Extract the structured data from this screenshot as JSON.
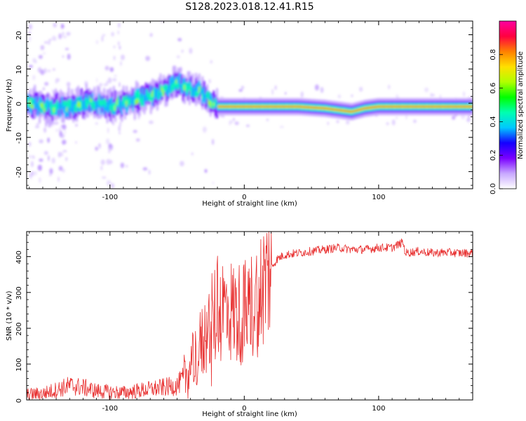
{
  "figure_title": "S128.2023.018.12.41.R15",
  "chart_data": [
    {
      "type": "heatmap",
      "title": "S128.2023.018.12.41.R15",
      "xlabel": "Height of straight line (km)",
      "ylabel": "Frequency (Hz)",
      "xlim": [
        -162,
        170
      ],
      "ylim": [
        -25,
        24
      ],
      "x_ticks": [
        -100,
        0,
        100
      ],
      "x_tick_labels": [
        "-100",
        "0",
        "100"
      ],
      "y_ticks": [
        20,
        10,
        0,
        -10,
        -20
      ],
      "y_tick_labels": [
        "20",
        "10",
        "0",
        "-10",
        "-20"
      ],
      "ridge": {
        "description": "Peak-frequency track of spectral energy",
        "x": [
          -162,
          -150,
          -140,
          -130,
          -120,
          -110,
          -100,
          -90,
          -80,
          -70,
          -60,
          -50,
          -40,
          -30,
          -25,
          -20,
          -10,
          0,
          10,
          20,
          40,
          60,
          70,
          80,
          90,
          100,
          120,
          140,
          170
        ],
        "y": [
          0,
          -1,
          -1,
          -1,
          0,
          0,
          -1,
          0,
          1,
          2,
          4,
          6,
          4,
          3,
          0,
          -1,
          -1,
          -1,
          -1,
          -1,
          -1,
          -1.5,
          -2,
          -2.5,
          -1.5,
          -1,
          -1,
          -1,
          -1
        ]
      },
      "colorbar": {
        "label": "Normalized spectral amplitude",
        "range": [
          0.0,
          1.0
        ],
        "ticks": [
          0.0,
          0.2,
          0.4,
          0.6,
          0.8
        ],
        "tick_labels": [
          "0.0",
          "0.2",
          "0.4",
          "0.6",
          "0.8"
        ],
        "colors": [
          "#ffffff",
          "#c8a8ff",
          "#7a00ff",
          "#1400ff",
          "#00c8ff",
          "#00ffb0",
          "#00ff00",
          "#b0ff00",
          "#ffe000",
          "#ff8000",
          "#ff0040",
          "#ff00a0"
        ]
      }
    },
    {
      "type": "line",
      "xlabel": "Height of straight line (km)",
      "ylabel": "SNR (10 * v/v)",
      "xlim": [
        -162,
        170
      ],
      "ylim": [
        0,
        470
      ],
      "x_ticks": [
        -100,
        0,
        100
      ],
      "x_tick_labels": [
        "-100",
        "0",
        "100"
      ],
      "y_ticks": [
        0,
        100,
        200,
        300,
        400
      ],
      "y_tick_labels": [
        "0",
        "100",
        "200",
        "300",
        "400"
      ],
      "color": "#e83030",
      "series": [
        {
          "name": "SNR",
          "x": [
            -162,
            -150,
            -140,
            -130,
            -120,
            -110,
            -100,
            -90,
            -80,
            -70,
            -60,
            -50,
            -45,
            -40,
            -35,
            -30,
            -25,
            -20,
            -15,
            -10,
            -5,
            0,
            5,
            10,
            15,
            20,
            25,
            30,
            40,
            50,
            60,
            70,
            80,
            90,
            100,
            110,
            118,
            120,
            130,
            140,
            150,
            160,
            170
          ],
          "y": [
            15,
            18,
            28,
            40,
            35,
            25,
            22,
            20,
            25,
            30,
            35,
            40,
            60,
            90,
            130,
            170,
            210,
            250,
            260,
            250,
            240,
            245,
            260,
            290,
            330,
            370,
            395,
            405,
            410,
            415,
            420,
            425,
            420,
            420,
            425,
            425,
            440,
            410,
            415,
            410,
            412,
            410,
            410
          ]
        }
      ]
    }
  ]
}
